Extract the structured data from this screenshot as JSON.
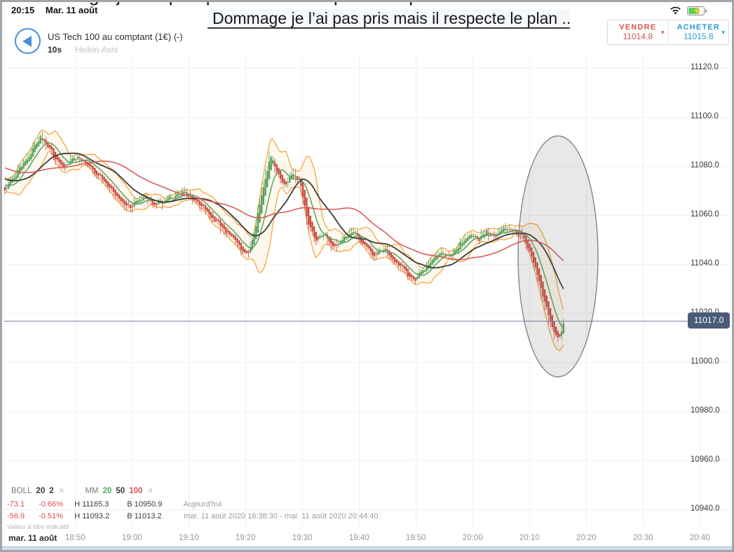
{
  "status_bar": {
    "time": "20:15",
    "date": "Mar. 11 août"
  },
  "top_overlay": {
    "cropped_line": "Dommage je l’ai pas pris mais il respecte le plan ...",
    "caption": "Dommage je l’ai pas pris mais il respecte le plan ..."
  },
  "header": {
    "title": "US Tech 100 au comptant (1€) (-)",
    "timeframe": "10s",
    "chart_style": "Heikin-Ashi"
  },
  "order_panel": {
    "sell_label": "VENDRE",
    "sell_price": "11014.8",
    "sell_caret": "▾",
    "buy_label": "ACHETER",
    "buy_price": "11015.8",
    "buy_caret": "▾"
  },
  "price_badge": "11017.0",
  "indicators": {
    "boll_label": "BOLL",
    "boll_p1": "20",
    "boll_p2": "2",
    "mm_label": "MM",
    "mm_p1": "20",
    "mm_p2": "50",
    "mm_p3": "100",
    "close_symbol": "×",
    "rows": [
      {
        "change": "-73.1",
        "pct": "-0.66%",
        "high": "H 11165.3",
        "low": "B 10950.9",
        "period": "Aujourd'hui"
      },
      {
        "change": "-56.9",
        "pct": "-0.51%",
        "high": "H 11093.2",
        "low": "B 11013.2",
        "period": "mar. 11 août 2020 18:38:30 - mar. 11 août 2020 20:44:40"
      }
    ],
    "disclaimer": "Valeur à titre indicatif"
  },
  "axis": {
    "date_label": "mar. 11 août",
    "x_ticks": [
      "18:50",
      "19:00",
      "19:10",
      "19:20",
      "19:30",
      "19:40",
      "19:50",
      "20:00",
      "20:10",
      "20:20",
      "20:30",
      "20:40"
    ],
    "y_ticks": [
      "11120.0",
      "11100.0",
      "11080.0",
      "11060.0",
      "11040.0",
      "11020.0",
      "11000.0",
      "10980.0",
      "10960.0",
      "10940.0"
    ]
  },
  "annotations": {
    "highlight_ellipse": "grey ellipse highlighting the sharp price drop around 20:10-20:15"
  },
  "chart_data": {
    "type": "candlestick",
    "style": "heikin-ashi",
    "timeframe_seconds": 10,
    "visible_range": {
      "start": "18:38:30",
      "end": "20:44:40"
    },
    "y_min": 10940,
    "y_max": 11120,
    "y_step": 20,
    "last_price": 11017.0,
    "session_high": 11093.2,
    "session_low": 11013.2,
    "price_path": [
      [
        0,
        11071
      ],
      [
        2.1,
        11077
      ],
      [
        4,
        11083
      ],
      [
        6.2,
        11092
      ],
      [
        7.9,
        11087
      ],
      [
        10.1,
        11079
      ],
      [
        12.6,
        11084
      ],
      [
        15.1,
        11079
      ],
      [
        17.5,
        11074
      ],
      [
        19.8,
        11067
      ],
      [
        21.9,
        11063
      ],
      [
        24.3,
        11068
      ],
      [
        26.8,
        11064
      ],
      [
        29.3,
        11067
      ],
      [
        31.7,
        11069
      ],
      [
        34.2,
        11065
      ],
      [
        36.7,
        11058
      ],
      [
        39.1,
        11053
      ],
      [
        41.5,
        11047
      ],
      [
        42.8,
        11043
      ],
      [
        44.1,
        11055
      ],
      [
        45.3,
        11070
      ],
      [
        46.8,
        11085
      ],
      [
        48,
        11077
      ],
      [
        49.3,
        11072
      ],
      [
        50.6,
        11077
      ],
      [
        51.9,
        11074
      ],
      [
        53.3,
        11058
      ],
      [
        54.6,
        11050
      ],
      [
        56.4,
        11052
      ],
      [
        58,
        11046
      ],
      [
        59.5,
        11050
      ],
      [
        61.4,
        11053
      ],
      [
        63.2,
        11048
      ],
      [
        65.1,
        11044
      ],
      [
        66.7,
        11047
      ],
      [
        68.4,
        11041
      ],
      [
        70,
        11039
      ],
      [
        71.9,
        11033
      ],
      [
        73.3,
        11036
      ],
      [
        74.9,
        11041
      ],
      [
        76.8,
        11045
      ],
      [
        78.6,
        11043
      ],
      [
        80.2,
        11048
      ],
      [
        81.7,
        11052
      ],
      [
        83.2,
        11050
      ],
      [
        84.8,
        11053
      ],
      [
        86.4,
        11051
      ],
      [
        87.9,
        11055
      ],
      [
        89.5,
        11054
      ],
      [
        91,
        11052
      ],
      [
        92.2,
        11046
      ],
      [
        93.5,
        11038
      ],
      [
        94.6,
        11028
      ],
      [
        95.7,
        11019
      ],
      [
        96.8,
        11012
      ],
      [
        97.7,
        11009
      ],
      [
        98.1,
        11014
      ],
      [
        98.5,
        11017
      ]
    ],
    "history_path": [
      [
        -24,
        11096
      ],
      [
        -18,
        11090
      ],
      [
        -12,
        11083
      ],
      [
        -6,
        11077
      ],
      [
        0,
        11071
      ]
    ],
    "indicators": {
      "bollinger": {
        "period": 20,
        "k": 2,
        "color": "#f2a73f"
      },
      "moving_averages": [
        {
          "period": 20,
          "color": "#57a15b"
        },
        {
          "period": 50,
          "color": "#3c3c3e"
        },
        {
          "period": 100,
          "color": "#d65450"
        }
      ]
    },
    "colors": {
      "up": "#53a158",
      "down": "#cb4b42",
      "bollinger_fill": "rgba(248,180,80,0.09)",
      "grid": "#f0f0f3",
      "price_line": "#8a96ab"
    }
  }
}
